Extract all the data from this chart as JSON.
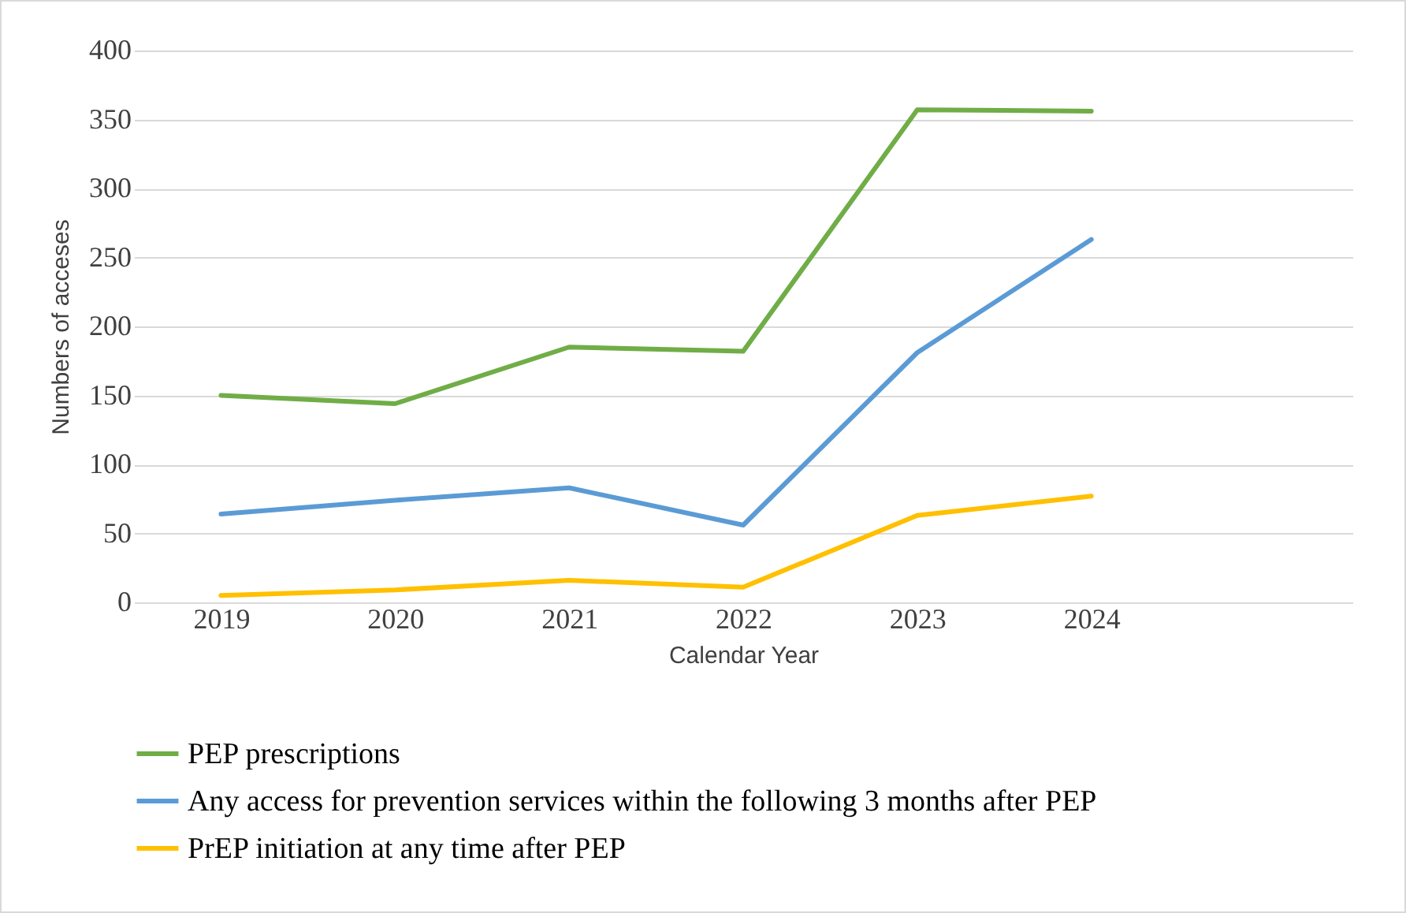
{
  "chart_data": {
    "type": "line",
    "xlabel": "Calendar Year",
    "ylabel": "Numbers of acceses",
    "categories": [
      "2019",
      "2020",
      "2021",
      "2022",
      "2023",
      "2024",
      null
    ],
    "series": [
      {
        "name": "PEP prescriptions",
        "color": "#70ad47",
        "values": [
          150,
          144,
          185,
          182,
          357,
          356,
          null
        ]
      },
      {
        "name": "Any access for prevention services within the following 3 months after PEP",
        "color": "#5b9bd5",
        "values": [
          64,
          74,
          83,
          56,
          181,
          263,
          null
        ]
      },
      {
        "name": "PrEP initiation  at any time after PEP",
        "color": "#ffc000",
        "values": [
          5,
          9,
          16,
          11,
          63,
          77,
          null
        ]
      }
    ],
    "ylim": [
      0,
      400
    ],
    "yticks": [
      0,
      50,
      100,
      150,
      200,
      250,
      300,
      350,
      400
    ],
    "grid": "y",
    "legend": "bottom",
    "marker": "none",
    "line_style": "solid"
  }
}
